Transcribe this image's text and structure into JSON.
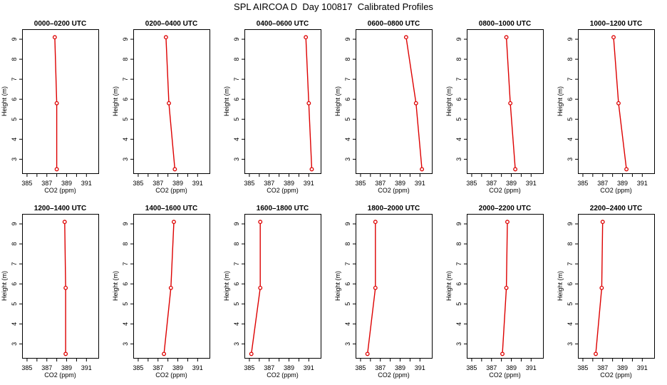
{
  "title": "SPL AIRCOA D  Day 100817  Calibrated Profiles",
  "colors": {
    "line": "#dd0000",
    "axis": "#000000"
  },
  "chart_data": [
    {
      "type": "line",
      "title": "0000–0200 UTC",
      "xlabel": "CO2 (ppm)",
      "ylabel": "Height (m)",
      "xlim": [
        384.5,
        392.2
      ],
      "ylim": [
        2.3,
        9.5
      ],
      "xticks": [
        "385",
        "387",
        "389",
        "391"
      ],
      "yticks": [
        "3",
        "4",
        "5",
        "6",
        "7",
        "8",
        "9"
      ],
      "x": [
        387.8,
        388.0,
        388.0
      ],
      "y": [
        9.1,
        5.8,
        2.5
      ]
    },
    {
      "type": "line",
      "title": "0200–0400 UTC",
      "xlabel": "CO2 (ppm)",
      "ylabel": "Height (m)",
      "xlim": [
        384.5,
        392.2
      ],
      "ylim": [
        2.3,
        9.5
      ],
      "xticks": [
        "385",
        "387",
        "389",
        "391"
      ],
      "yticks": [
        "3",
        "4",
        "5",
        "6",
        "7",
        "8",
        "9"
      ],
      "x": [
        387.8,
        388.1,
        388.7
      ],
      "y": [
        9.1,
        5.8,
        2.5
      ]
    },
    {
      "type": "line",
      "title": "0400–0600 UTC",
      "xlabel": "CO2 (ppm)",
      "ylabel": "Height (m)",
      "xlim": [
        384.5,
        392.2
      ],
      "ylim": [
        2.3,
        9.5
      ],
      "xticks": [
        "385",
        "387",
        "389",
        "391"
      ],
      "yticks": [
        "3",
        "4",
        "5",
        "6",
        "7",
        "8",
        "9"
      ],
      "x": [
        390.7,
        391.0,
        391.3
      ],
      "y": [
        9.1,
        5.8,
        2.5
      ]
    },
    {
      "type": "line",
      "title": "0600–0800 UTC",
      "xlabel": "CO2 (ppm)",
      "ylabel": "Height (m)",
      "xlim": [
        384.5,
        392.2
      ],
      "ylim": [
        2.3,
        9.5
      ],
      "xticks": [
        "385",
        "387",
        "389",
        "391"
      ],
      "yticks": [
        "3",
        "4",
        "5",
        "6",
        "7",
        "8",
        "9"
      ],
      "x": [
        389.6,
        390.6,
        391.2
      ],
      "y": [
        9.1,
        5.8,
        2.5
      ]
    },
    {
      "type": "line",
      "title": "0800–1000 UTC",
      "xlabel": "CO2 (ppm)",
      "ylabel": "Height (m)",
      "xlim": [
        384.5,
        392.2
      ],
      "ylim": [
        2.3,
        9.5
      ],
      "xticks": [
        "385",
        "387",
        "389",
        "391"
      ],
      "yticks": [
        "3",
        "4",
        "5",
        "6",
        "7",
        "8",
        "9"
      ],
      "x": [
        388.5,
        388.9,
        389.4
      ],
      "y": [
        9.1,
        5.8,
        2.5
      ]
    },
    {
      "type": "line",
      "title": "1000–1200 UTC",
      "xlabel": "CO2 (ppm)",
      "ylabel": "Height (m)",
      "xlim": [
        384.5,
        392.2
      ],
      "ylim": [
        2.3,
        9.5
      ],
      "xticks": [
        "385",
        "387",
        "389",
        "391"
      ],
      "yticks": [
        "3",
        "4",
        "5",
        "6",
        "7",
        "8",
        "9"
      ],
      "x": [
        388.1,
        388.6,
        389.4
      ],
      "y": [
        9.1,
        5.8,
        2.5
      ]
    },
    {
      "type": "line",
      "title": "1200–1400 UTC",
      "xlabel": "CO2 (ppm)",
      "ylabel": "Height (m)",
      "xlim": [
        384.5,
        392.2
      ],
      "ylim": [
        2.3,
        9.5
      ],
      "xticks": [
        "385",
        "387",
        "389",
        "391"
      ],
      "yticks": [
        "3",
        "4",
        "5",
        "6",
        "7",
        "8",
        "9"
      ],
      "x": [
        388.8,
        388.9,
        388.9
      ],
      "y": [
        9.1,
        5.8,
        2.5
      ]
    },
    {
      "type": "line",
      "title": "1400–1600 UTC",
      "xlabel": "CO2 (ppm)",
      "ylabel": "Height (m)",
      "xlim": [
        384.5,
        392.2
      ],
      "ylim": [
        2.3,
        9.5
      ],
      "xticks": [
        "385",
        "387",
        "389",
        "391"
      ],
      "yticks": [
        "3",
        "4",
        "5",
        "6",
        "7",
        "8",
        "9"
      ],
      "x": [
        388.6,
        388.3,
        387.6
      ],
      "y": [
        9.1,
        5.8,
        2.5
      ]
    },
    {
      "type": "line",
      "title": "1600–1800 UTC",
      "xlabel": "CO2 (ppm)",
      "ylabel": "Height (m)",
      "xlim": [
        384.5,
        392.2
      ],
      "ylim": [
        2.3,
        9.5
      ],
      "xticks": [
        "385",
        "387",
        "389",
        "391"
      ],
      "yticks": [
        "3",
        "4",
        "5",
        "6",
        "7",
        "8",
        "9"
      ],
      "x": [
        386.1,
        386.1,
        385.2
      ],
      "y": [
        9.1,
        5.8,
        2.5
      ]
    },
    {
      "type": "line",
      "title": "1800–2000 UTC",
      "xlabel": "CO2 (ppm)",
      "ylabel": "Height (m)",
      "xlim": [
        384.5,
        392.2
      ],
      "ylim": [
        2.3,
        9.5
      ],
      "xticks": [
        "385",
        "387",
        "389",
        "391"
      ],
      "yticks": [
        "3",
        "4",
        "5",
        "6",
        "7",
        "8",
        "9"
      ],
      "x": [
        386.5,
        386.5,
        385.7
      ],
      "y": [
        9.1,
        5.8,
        2.5
      ]
    },
    {
      "type": "line",
      "title": "2000–2200 UTC",
      "xlabel": "CO2 (ppm)",
      "ylabel": "Height (m)",
      "xlim": [
        384.5,
        392.2
      ],
      "ylim": [
        2.3,
        9.5
      ],
      "xticks": [
        "385",
        "387",
        "389",
        "391"
      ],
      "yticks": [
        "3",
        "4",
        "5",
        "6",
        "7",
        "8",
        "9"
      ],
      "x": [
        388.6,
        388.5,
        388.1
      ],
      "y": [
        9.1,
        5.8,
        2.5
      ]
    },
    {
      "type": "line",
      "title": "2200–2400 UTC",
      "xlabel": "CO2 (ppm)",
      "ylabel": "Height (m)",
      "xlim": [
        384.5,
        392.2
      ],
      "ylim": [
        2.3,
        9.5
      ],
      "xticks": [
        "385",
        "387",
        "389",
        "391"
      ],
      "yticks": [
        "3",
        "4",
        "5",
        "6",
        "7",
        "8",
        "9"
      ],
      "x": [
        387.0,
        386.9,
        386.3
      ],
      "y": [
        9.1,
        5.8,
        2.5
      ]
    }
  ]
}
